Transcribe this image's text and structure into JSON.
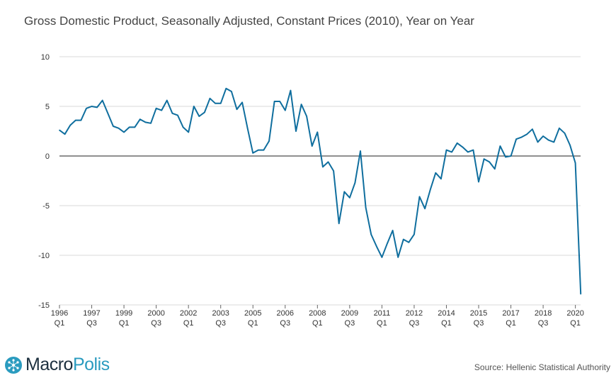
{
  "chart_data": {
    "type": "line",
    "title": "Gross Domestic Product, Seasonally Adjusted, Constant Prices (2010), Year on Year",
    "xlabel": "",
    "ylabel": "",
    "ylim": [
      -15,
      10
    ],
    "yticks": [
      10,
      5,
      0,
      -5,
      -10,
      -15
    ],
    "grid": true,
    "line_color": "#0f6e9e",
    "x_tick_labels": [
      {
        "year": "1996",
        "quarter": "Q1",
        "q_index": 0
      },
      {
        "year": "1997",
        "quarter": "Q3",
        "q_index": 6
      },
      {
        "year": "1999",
        "quarter": "Q1",
        "q_index": 12
      },
      {
        "year": "2000",
        "quarter": "Q3",
        "q_index": 18
      },
      {
        "year": "2002",
        "quarter": "Q1",
        "q_index": 24
      },
      {
        "year": "2003",
        "quarter": "Q3",
        "q_index": 30
      },
      {
        "year": "2005",
        "quarter": "Q1",
        "q_index": 36
      },
      {
        "year": "2006",
        "quarter": "Q3",
        "q_index": 42
      },
      {
        "year": "2008",
        "quarter": "Q1",
        "q_index": 48
      },
      {
        "year": "2009",
        "quarter": "Q3",
        "q_index": 54
      },
      {
        "year": "2011",
        "quarter": "Q1",
        "q_index": 60
      },
      {
        "year": "2012",
        "quarter": "Q3",
        "q_index": 66
      },
      {
        "year": "2014",
        "quarter": "Q1",
        "q_index": 72
      },
      {
        "year": "2015",
        "quarter": "Q3",
        "q_index": 78
      },
      {
        "year": "2017",
        "quarter": "Q1",
        "q_index": 84
      },
      {
        "year": "2018",
        "quarter": "Q3",
        "q_index": 90
      },
      {
        "year": "2020",
        "quarter": "Q1",
        "q_index": 96
      }
    ],
    "x_start": "1996 Q1",
    "values": [
      2.6,
      2.2,
      3.1,
      3.6,
      3.6,
      4.8,
      5.0,
      4.9,
      5.6,
      4.3,
      3.0,
      2.8,
      2.4,
      2.9,
      2.9,
      3.7,
      3.4,
      3.3,
      4.8,
      4.6,
      5.6,
      4.3,
      4.1,
      2.9,
      2.4,
      5.0,
      4.0,
      4.4,
      5.8,
      5.3,
      5.3,
      6.8,
      6.5,
      4.7,
      5.4,
      2.8,
      0.3,
      0.6,
      0.6,
      1.5,
      5.5,
      5.5,
      4.6,
      6.6,
      2.5,
      5.2,
      4.0,
      1.0,
      2.4,
      -1.1,
      -0.6,
      -1.5,
      -6.8,
      -3.6,
      -4.2,
      -2.7,
      0.5,
      -5.2,
      -7.9,
      -9.1,
      -10.2,
      -8.8,
      -7.5,
      -10.2,
      -8.4,
      -8.7,
      -7.9,
      -4.1,
      -5.3,
      -3.4,
      -1.7,
      -2.3,
      0.6,
      0.4,
      1.3,
      0.9,
      0.4,
      0.6,
      -2.6,
      -0.3,
      -0.6,
      -1.3,
      1.0,
      -0.1,
      0.0,
      1.7,
      1.9,
      2.2,
      2.7,
      1.4,
      2.0,
      1.6,
      1.4,
      2.8,
      2.3,
      1.1,
      -0.7,
      -13.9
    ]
  },
  "source": "Source: Hellenic Statistical Authority",
  "logo": {
    "part1": "Macro",
    "part2": "Polis",
    "name": "MacroPolis"
  }
}
